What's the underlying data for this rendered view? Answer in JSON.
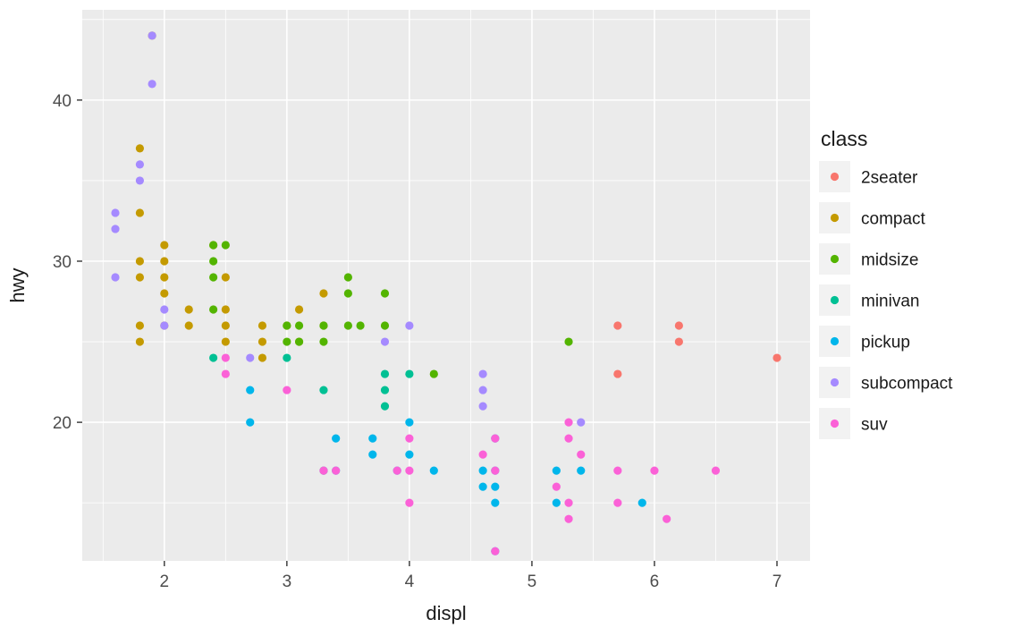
{
  "chart_data": {
    "type": "scatter",
    "title": "",
    "xlabel": "displ",
    "ylabel": "hwy",
    "legend_title": "class",
    "xlim": [
      1.33,
      7.27
    ],
    "ylim": [
      11.4,
      45.6
    ],
    "x_major_ticks": [
      2,
      3,
      4,
      5,
      6,
      7
    ],
    "x_minor_ticks": [
      1.5,
      2.5,
      3.5,
      4.5,
      5.5,
      6.5
    ],
    "y_major_ticks": [
      20,
      30,
      40
    ],
    "y_minor_ticks": [
      15,
      25,
      35,
      45
    ],
    "panel_background": "#EBEBEB",
    "grid_color": "#FFFFFF",
    "legend_key_background": "#F2F2F2",
    "legend_position": "right",
    "grid": "on",
    "series": [
      {
        "name": "2seater",
        "color": "#F8766D",
        "points": [
          [
            5.7,
            26
          ],
          [
            5.7,
            23
          ],
          [
            6.2,
            26
          ],
          [
            6.2,
            25
          ],
          [
            7.0,
            24
          ]
        ]
      },
      {
        "name": "compact",
        "color": "#C49A00",
        "points": [
          [
            1.8,
            37
          ],
          [
            1.8,
            33
          ],
          [
            1.8,
            30
          ],
          [
            1.8,
            29
          ],
          [
            1.8,
            26
          ],
          [
            1.8,
            25
          ],
          [
            1.9,
            44
          ],
          [
            2.0,
            31
          ],
          [
            2.0,
            30
          ],
          [
            2.0,
            29
          ],
          [
            2.0,
            28
          ],
          [
            2.0,
            26
          ],
          [
            2.2,
            27
          ],
          [
            2.2,
            26
          ],
          [
            2.4,
            31
          ],
          [
            2.5,
            29
          ],
          [
            2.5,
            27
          ],
          [
            2.5,
            26
          ],
          [
            2.5,
            25
          ],
          [
            2.8,
            26
          ],
          [
            2.8,
            25
          ],
          [
            2.8,
            24
          ],
          [
            3.0,
            26
          ],
          [
            3.1,
            27
          ],
          [
            3.1,
            25
          ],
          [
            3.3,
            28
          ],
          [
            3.3,
            26
          ]
        ]
      },
      {
        "name": "midsize",
        "color": "#53B400",
        "points": [
          [
            2.4,
            31
          ],
          [
            2.4,
            30
          ],
          [
            2.4,
            29
          ],
          [
            2.4,
            27
          ],
          [
            2.5,
            31
          ],
          [
            3.0,
            26
          ],
          [
            3.0,
            25
          ],
          [
            3.1,
            26
          ],
          [
            3.3,
            26
          ],
          [
            3.3,
            25
          ],
          [
            3.5,
            29
          ],
          [
            3.5,
            28
          ],
          [
            3.5,
            26
          ],
          [
            3.6,
            26
          ],
          [
            3.8,
            28
          ],
          [
            3.8,
            26
          ],
          [
            3.1,
            25
          ],
          [
            4.2,
            23
          ],
          [
            5.3,
            25
          ]
        ]
      },
      {
        "name": "minivan",
        "color": "#00C094",
        "points": [
          [
            2.4,
            24
          ],
          [
            3.0,
            24
          ],
          [
            3.3,
            22
          ],
          [
            3.3,
            17
          ],
          [
            3.8,
            23
          ],
          [
            3.8,
            22
          ],
          [
            3.8,
            21
          ],
          [
            4.0,
            23
          ]
        ]
      },
      {
        "name": "pickup",
        "color": "#00B6EB",
        "points": [
          [
            2.7,
            22
          ],
          [
            2.7,
            20
          ],
          [
            3.4,
            19
          ],
          [
            3.4,
            17
          ],
          [
            3.7,
            19
          ],
          [
            3.7,
            18
          ],
          [
            3.9,
            17
          ],
          [
            4.0,
            20
          ],
          [
            4.0,
            18
          ],
          [
            4.2,
            17
          ],
          [
            4.6,
            17
          ],
          [
            4.6,
            16
          ],
          [
            4.7,
            19
          ],
          [
            4.7,
            17
          ],
          [
            4.7,
            16
          ],
          [
            4.7,
            15
          ],
          [
            4.7,
            12
          ],
          [
            5.2,
            17
          ],
          [
            5.2,
            15
          ],
          [
            5.4,
            17
          ],
          [
            5.9,
            15
          ]
        ]
      },
      {
        "name": "subcompact",
        "color": "#A58AFF",
        "points": [
          [
            1.6,
            33
          ],
          [
            1.6,
            32
          ],
          [
            1.6,
            29
          ],
          [
            1.8,
            36
          ],
          [
            1.8,
            35
          ],
          [
            1.9,
            44
          ],
          [
            1.9,
            41
          ],
          [
            2.0,
            27
          ],
          [
            2.0,
            26
          ],
          [
            2.7,
            24
          ],
          [
            3.8,
            25
          ],
          [
            4.0,
            26
          ],
          [
            4.6,
            23
          ],
          [
            4.6,
            22
          ],
          [
            4.6,
            21
          ],
          [
            5.4,
            20
          ]
        ]
      },
      {
        "name": "suv",
        "color": "#FB61D7",
        "points": [
          [
            2.5,
            24
          ],
          [
            2.5,
            23
          ],
          [
            3.0,
            22
          ],
          [
            3.3,
            17
          ],
          [
            3.4,
            17
          ],
          [
            3.9,
            17
          ],
          [
            4.0,
            19
          ],
          [
            4.0,
            17
          ],
          [
            4.0,
            15
          ],
          [
            4.6,
            18
          ],
          [
            4.7,
            19
          ],
          [
            4.7,
            17
          ],
          [
            4.7,
            12
          ],
          [
            5.2,
            16
          ],
          [
            5.3,
            20
          ],
          [
            5.3,
            19
          ],
          [
            5.3,
            15
          ],
          [
            5.3,
            14
          ],
          [
            5.4,
            18
          ],
          [
            5.7,
            17
          ],
          [
            5.7,
            15
          ],
          [
            6.0,
            17
          ],
          [
            6.1,
            14
          ],
          [
            6.5,
            17
          ]
        ]
      }
    ]
  }
}
